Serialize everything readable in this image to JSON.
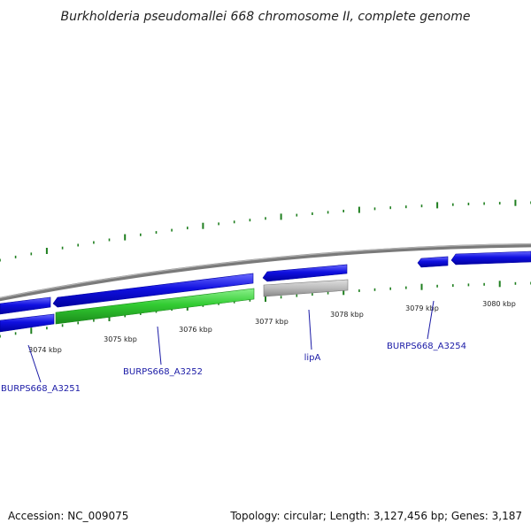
{
  "title": "Burkholderia pseudomallei 668 chromosome II, complete genome",
  "footer": {
    "accession": "Accession: NC_009075",
    "topology": "Topology: circular; Length: 3,127,456 bp; Genes: 3,187"
  },
  "ticks": [
    "3074 kbp",
    "3075 kbp",
    "3076 kbp",
    "3077 kbp",
    "3078 kbp",
    "3079 kbp",
    "3080 kbp"
  ],
  "gene_labels": [
    "BURPS668_A3251",
    "BURPS668_A3252",
    "lipA",
    "BURPS668_A3254"
  ],
  "colors": {
    "backbone": "#888888",
    "gene_blue": "#1a1ae6",
    "gene_green": "#3ccc3c",
    "gene_grey": "#bdbdbd",
    "tick": "#1f7f1f",
    "label_blue": "#1a1aa6"
  }
}
